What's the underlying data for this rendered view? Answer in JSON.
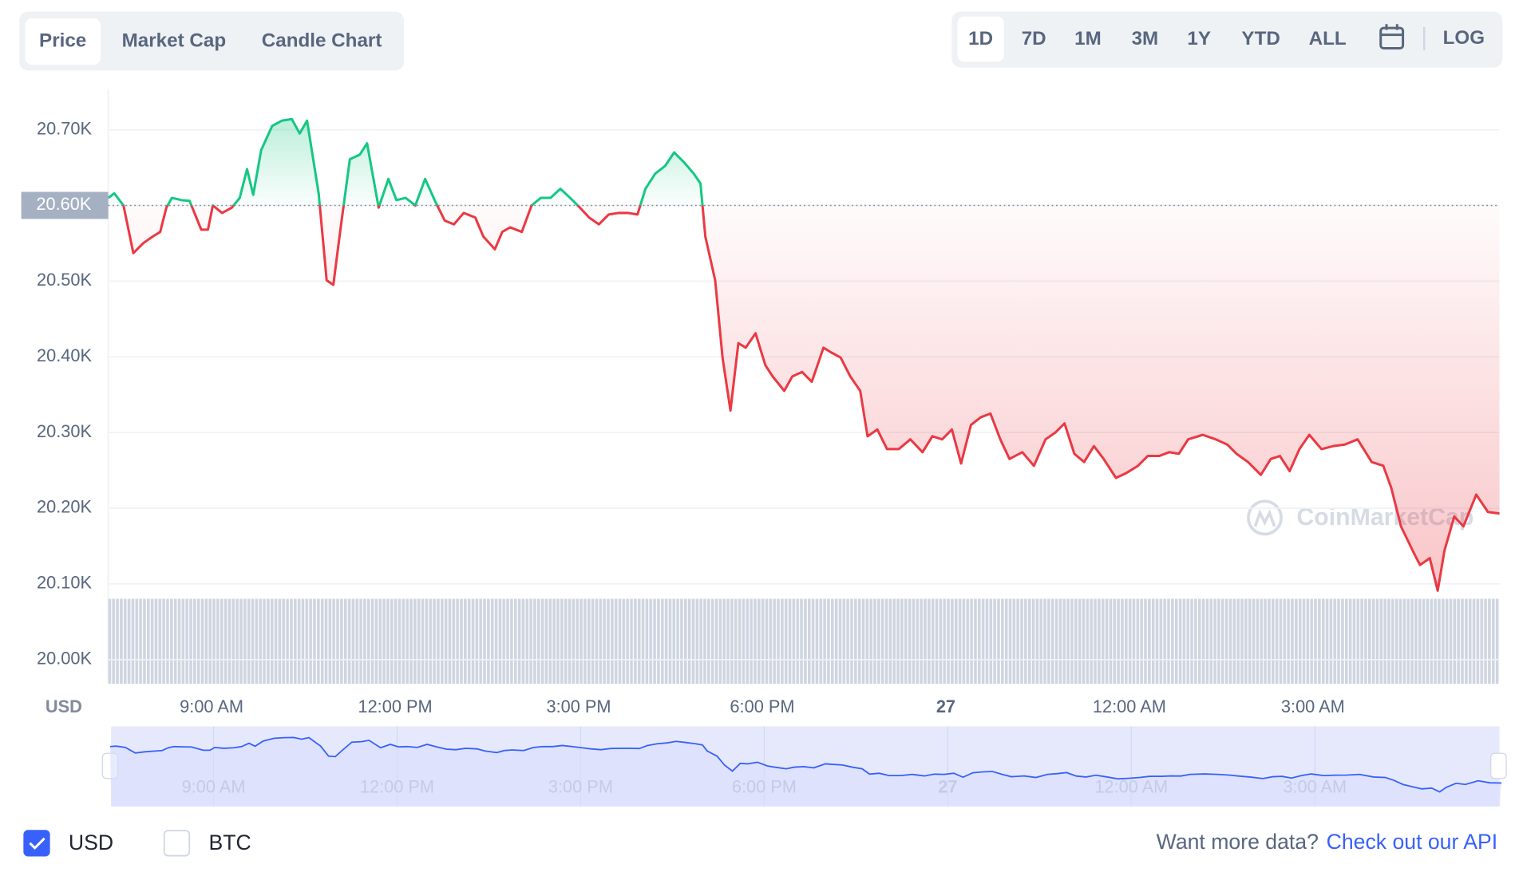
{
  "tabs": {
    "items": [
      "Price",
      "Market Cap",
      "Candle Chart"
    ],
    "active": 0
  },
  "ranges": {
    "items": [
      "1D",
      "7D",
      "1M",
      "3M",
      "1Y",
      "YTD",
      "ALL"
    ],
    "active": 0,
    "log": "LOG"
  },
  "chart_data": {
    "type": "line",
    "currency_label": "USD",
    "watermark": "CoinMarketCap",
    "colors": {
      "up": "#16c784",
      "down": "#ea3943",
      "navigator": "#3861fb"
    },
    "grid": true,
    "baseline": {
      "value": 20600,
      "label": "20.60K"
    },
    "xlim": [
      7.31,
      30.05
    ],
    "xticks": [
      {
        "value": 9,
        "label": "9:00 AM"
      },
      {
        "value": 12,
        "label": "12:00 PM"
      },
      {
        "value": 15,
        "label": "3:00 PM"
      },
      {
        "value": 18,
        "label": "6:00 PM"
      },
      {
        "value": 21,
        "label": "27"
      },
      {
        "value": 24,
        "label": "12:00 AM"
      },
      {
        "value": 27,
        "label": "3:00 AM"
      }
    ],
    "ylim": [
      19968,
      20754
    ],
    "yticks": [
      {
        "value": 20000,
        "label": "20.00K"
      },
      {
        "value": 20100,
        "label": "20.10K"
      },
      {
        "value": 20200,
        "label": "20.20K"
      },
      {
        "value": 20300,
        "label": "20.30K"
      },
      {
        "value": 20400,
        "label": "20.40K"
      },
      {
        "value": 20500,
        "label": "20.50K"
      },
      {
        "value": 20600,
        "label": "20.60K"
      },
      {
        "value": 20700,
        "label": "20.70K"
      }
    ],
    "x": [
      7.31,
      7.41,
      7.56,
      7.72,
      7.88,
      8.04,
      8.16,
      8.26,
      8.35,
      8.51,
      8.64,
      8.83,
      8.94,
      9.02,
      9.17,
      9.33,
      9.46,
      9.58,
      9.68,
      9.81,
      9.99,
      10.15,
      10.31,
      10.44,
      10.56,
      10.75,
      10.88,
      10.99,
      11.1,
      11.26,
      11.42,
      11.54,
      11.73,
      11.89,
      12.02,
      12.17,
      12.33,
      12.49,
      12.65,
      12.81,
      12.96,
      13.12,
      13.31,
      13.44,
      13.63,
      13.75,
      13.88,
      14.07,
      14.23,
      14.38,
      14.54,
      14.7,
      14.86,
      15.02,
      15.17,
      15.33,
      15.49,
      15.65,
      15.81,
      15.96,
      16.09,
      16.25,
      16.41,
      16.56,
      16.72,
      16.88,
      16.99,
      17.07,
      17.23,
      17.35,
      17.48,
      17.61,
      17.73,
      17.89,
      18.05,
      18.17,
      18.36,
      18.49,
      18.65,
      18.81,
      19.0,
      19.12,
      19.28,
      19.44,
      19.6,
      19.72,
      19.88,
      20.04,
      20.23,
      20.42,
      20.62,
      20.78,
      20.94,
      21.1,
      21.25,
      21.41,
      21.57,
      21.73,
      21.89,
      22.04,
      22.25,
      22.44,
      22.63,
      22.79,
      22.94,
      23.1,
      23.26,
      23.42,
      23.58,
      23.78,
      23.94,
      24.14,
      24.3,
      24.49,
      24.65,
      24.81,
      24.96,
      25.2,
      25.41,
      25.6,
      25.75,
      25.94,
      26.15,
      26.31,
      26.46,
      26.62,
      26.78,
      26.94,
      27.14,
      27.33,
      27.52,
      27.73,
      27.96,
      28.15,
      28.28,
      28.44,
      28.63,
      28.75,
      28.91,
      29.04,
      29.15,
      29.31,
      29.46,
      29.67,
      29.86,
      30.05
    ],
    "values": [
      20610,
      20616,
      20600,
      20537,
      20550,
      20559,
      20565,
      20597,
      20610,
      20607,
      20606,
      20568,
      20568,
      20600,
      20590,
      20597,
      20610,
      20648,
      20614,
      20673,
      20705,
      20712,
      20714,
      20695,
      20712,
      20616,
      20501,
      20495,
      20565,
      20661,
      20667,
      20682,
      20597,
      20635,
      20607,
      20610,
      20600,
      20635,
      20606,
      20580,
      20575,
      20590,
      20584,
      20559,
      20542,
      20565,
      20571,
      20565,
      20600,
      20610,
      20610,
      20622,
      20610,
      20597,
      20584,
      20575,
      20588,
      20590,
      20590,
      20588,
      20622,
      20642,
      20652,
      20670,
      20657,
      20642,
      20629,
      20559,
      20501,
      20399,
      20329,
      20418,
      20412,
      20431,
      20389,
      20374,
      20355,
      20374,
      20380,
      20367,
      20412,
      20406,
      20399,
      20374,
      20355,
      20295,
      20304,
      20278,
      20278,
      20291,
      20274,
      20295,
      20291,
      20304,
      20259,
      20310,
      20320,
      20325,
      20291,
      20265,
      20274,
      20256,
      20291,
      20300,
      20312,
      20272,
      20261,
      20282,
      20265,
      20240,
      20246,
      20256,
      20269,
      20269,
      20274,
      20272,
      20291,
      20297,
      20291,
      20284,
      20272,
      20261,
      20244,
      20265,
      20269,
      20249,
      20278,
      20297,
      20278,
      20282,
      20284,
      20291,
      20261,
      20256,
      20227,
      20176,
      20144,
      20125,
      20134,
      20091,
      20144,
      20189,
      20176,
      20218,
      20195,
      20193
    ]
  },
  "currencies": [
    {
      "label": "USD",
      "checked": true
    },
    {
      "label": "BTC",
      "checked": false
    }
  ],
  "footer": {
    "text": "Want more data?",
    "link": "Check out our API"
  }
}
